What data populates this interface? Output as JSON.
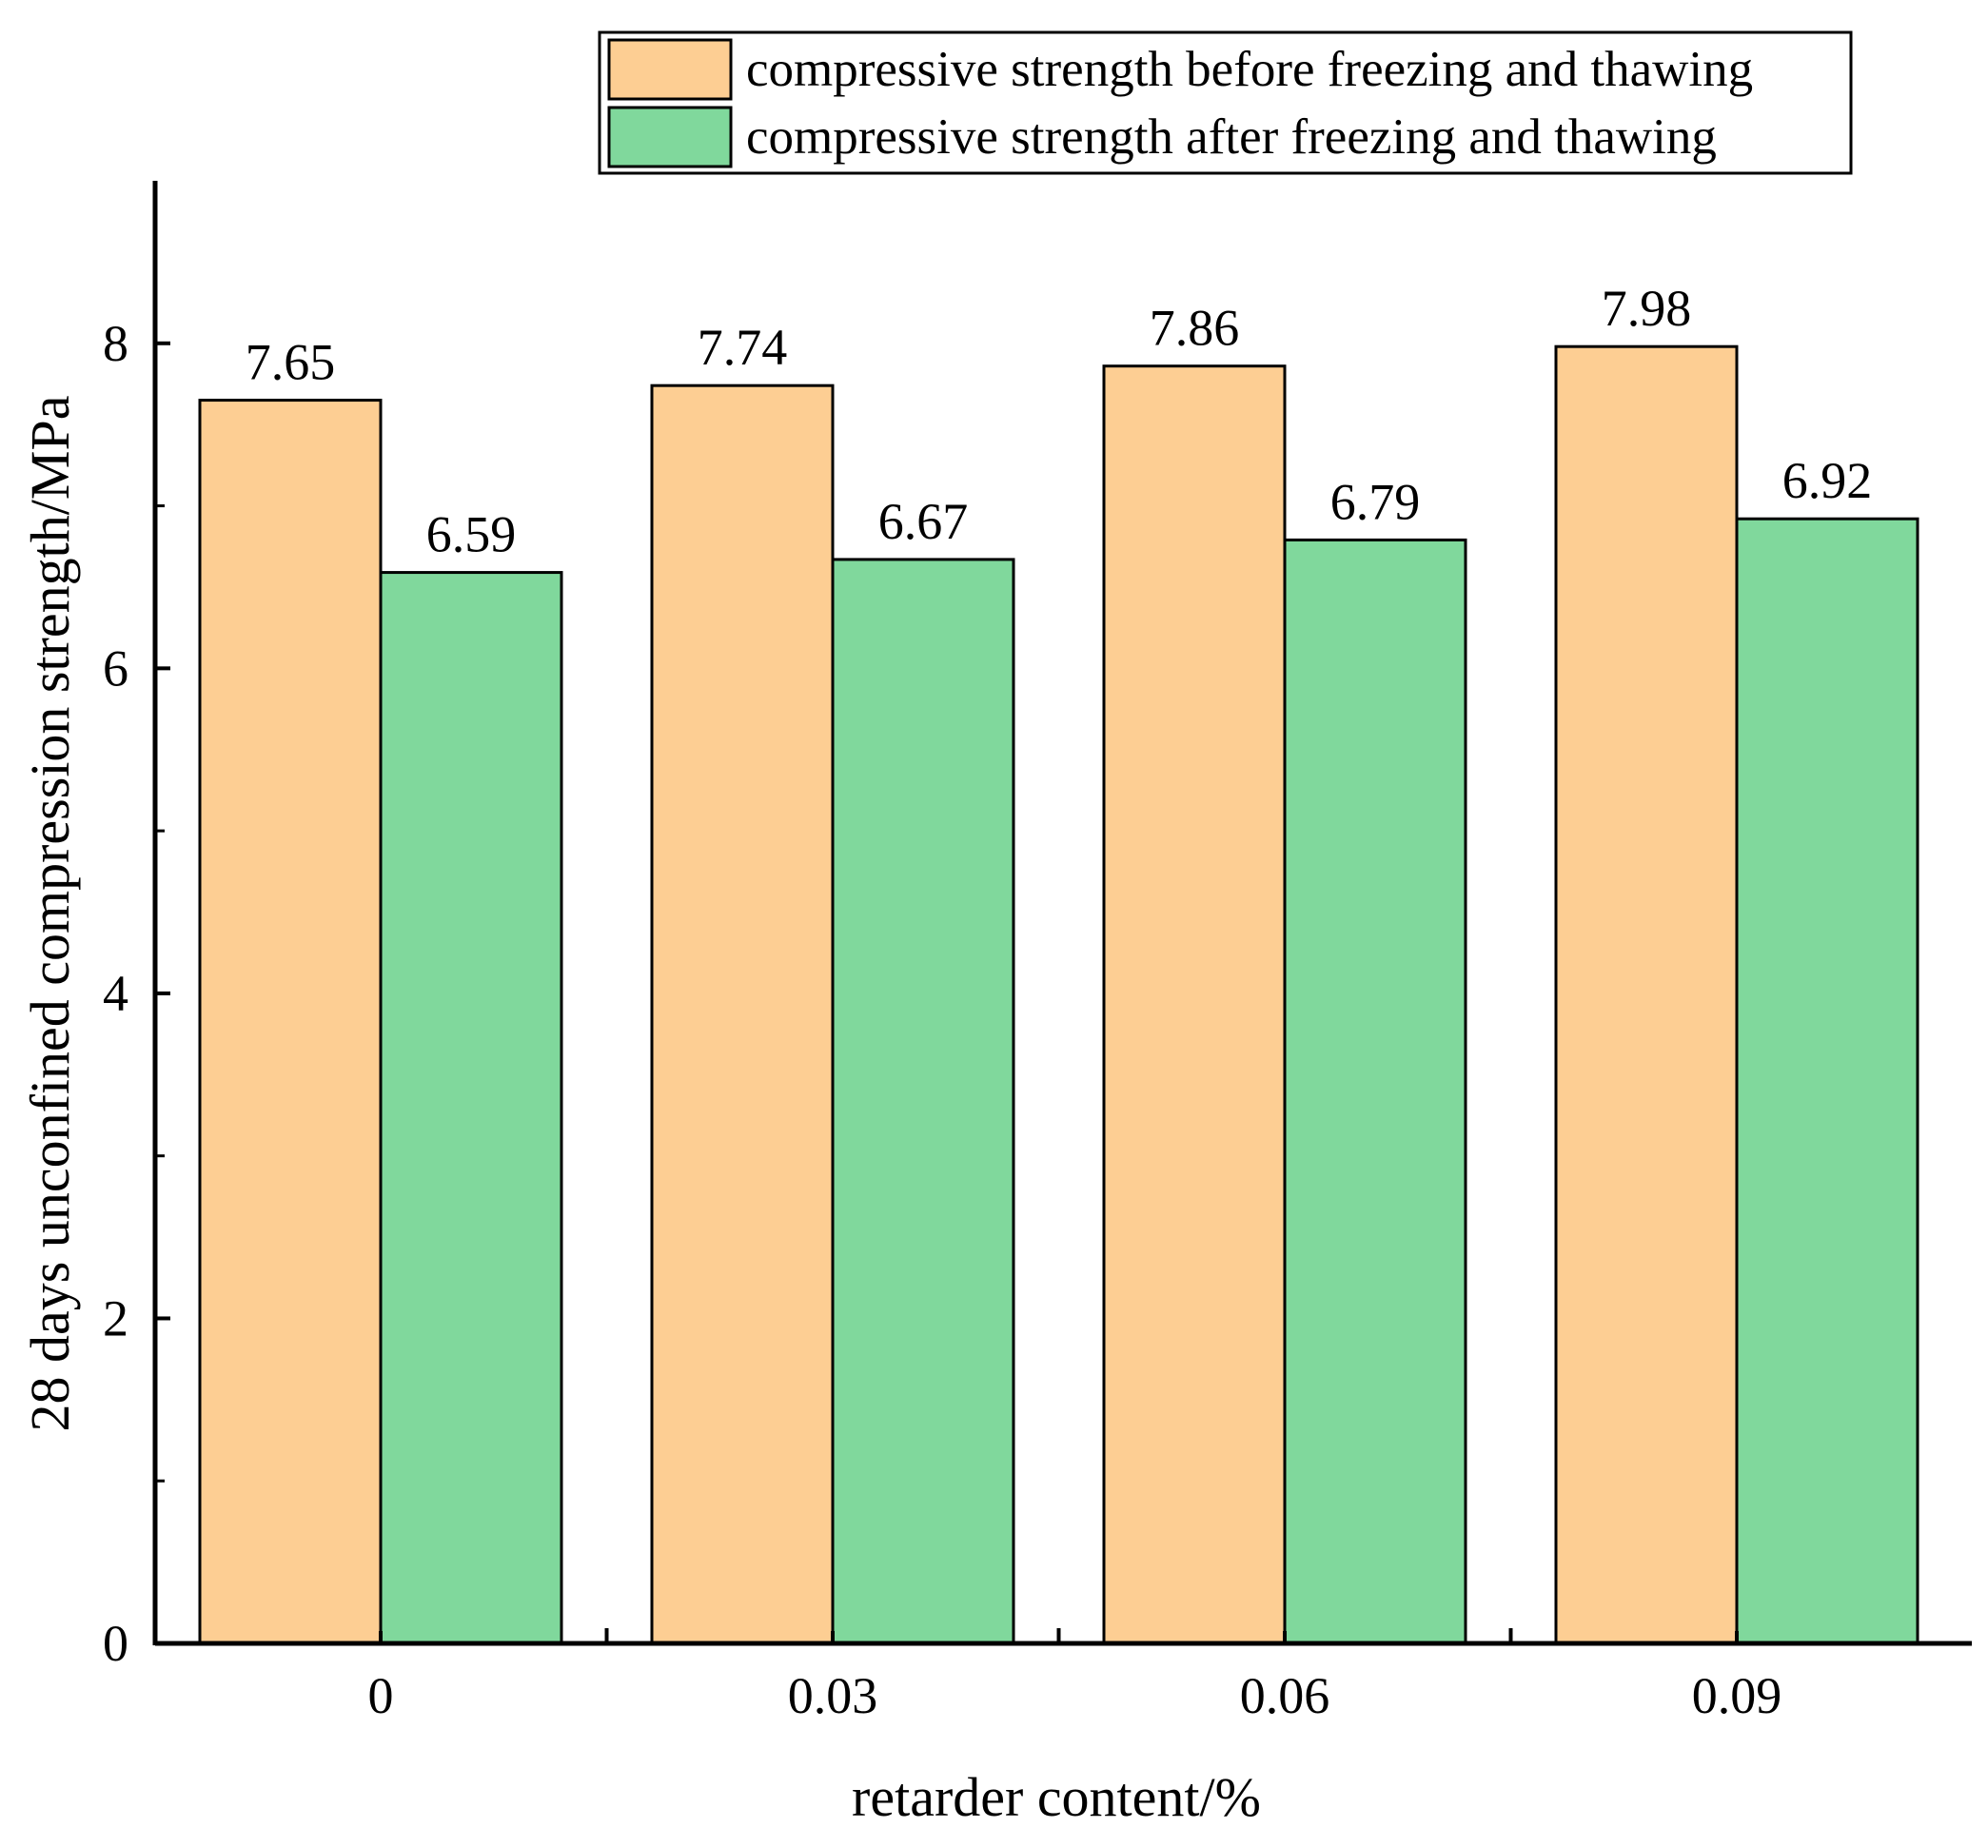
{
  "chart_data": {
    "type": "bar",
    "title": "",
    "xlabel": "retarder content/%",
    "ylabel": "28 days unconfined compression strength/MPa",
    "categories": [
      "0",
      "0.03",
      "0.06",
      "0.09"
    ],
    "series": [
      {
        "name": "compressive strength before freezing and thawing",
        "color": "#FDCE93",
        "values": [
          7.65,
          7.74,
          7.86,
          7.98
        ],
        "labels": [
          "7.65",
          "7.74",
          "7.86",
          "7.98"
        ]
      },
      {
        "name": "compressive strength after freezing and thawing",
        "color": "#80D89C",
        "values": [
          6.59,
          6.67,
          6.79,
          6.92
        ],
        "labels": [
          "6.59",
          "6.67",
          "6.79",
          "6.92"
        ]
      }
    ],
    "ylim": [
      0,
      9
    ],
    "yticks": [
      0,
      2,
      4,
      6,
      8
    ],
    "yminor": [
      1,
      3,
      5,
      7
    ],
    "ytick_labels": [
      "0",
      "2",
      "4",
      "6",
      "8"
    ],
    "grid": false,
    "legend": "top-right"
  }
}
